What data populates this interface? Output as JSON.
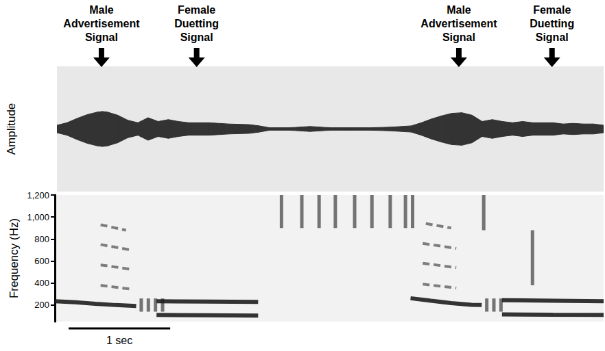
{
  "chart_data": [
    {
      "type": "waveform",
      "y_label": "Amplitude",
      "xlim": [
        0,
        5.4
      ],
      "ylim": [
        -1,
        1
      ],
      "tick_labels": false,
      "color": "#333333",
      "x": [
        0,
        0.1,
        0.2,
        0.3,
        0.4,
        0.45,
        0.5,
        0.6,
        0.7,
        0.8,
        0.9,
        1.0,
        1.1,
        1.2,
        1.3,
        1.5,
        1.7,
        1.9,
        2.0,
        2.1,
        2.3,
        2.5,
        2.7,
        2.9,
        3.1,
        3.3,
        3.5,
        3.6,
        3.7,
        3.8,
        3.9,
        4.0,
        4.1,
        4.2,
        4.3,
        4.4,
        4.5,
        4.6,
        4.7,
        4.8,
        4.9,
        5.0,
        5.1,
        5.2,
        5.3,
        5.4
      ],
      "values": [
        0.06,
        0.1,
        0.17,
        0.23,
        0.27,
        0.28,
        0.27,
        0.22,
        0.14,
        0.1,
        0.18,
        0.12,
        0.15,
        0.12,
        0.1,
        0.1,
        0.08,
        0.07,
        0.05,
        0.02,
        0.02,
        0.04,
        0.02,
        0.02,
        0.02,
        0.03,
        0.05,
        0.1,
        0.16,
        0.21,
        0.25,
        0.26,
        0.22,
        0.12,
        0.15,
        0.12,
        0.1,
        0.12,
        0.1,
        0.1,
        0.1,
        0.08,
        0.09,
        0.08,
        0.08,
        0.06
      ],
      "annotations": [
        {
          "text": "Male Advertisement Signal",
          "x": 0.44
        },
        {
          "text": "Female Duetting Signal",
          "x": 1.38
        },
        {
          "text": "Male Advertisement Signal",
          "x": 3.97
        },
        {
          "text": "Female Duetting Signal",
          "x": 4.89
        }
      ]
    },
    {
      "type": "spectrogram",
      "y_label": "Frequency (Hz)",
      "xlim": [
        0,
        5.4
      ],
      "ylim": [
        50,
        1200
      ],
      "yticks": [
        200,
        400,
        600,
        800,
        1000,
        1200
      ],
      "tick_labels": "y",
      "color": "#1e1e1e",
      "traces": [
        {
          "x": [
            0,
            0.2,
            0.4,
            0.6,
            0.8
          ],
          "values": [
            235,
            225,
            212,
            200,
            192
          ],
          "line_style": "solid"
        },
        {
          "x": [
            0.45,
            0.75
          ],
          "values": [
            380,
            345
          ],
          "line_style": "dashed"
        },
        {
          "x": [
            0.45,
            0.75
          ],
          "values": [
            565,
            525
          ],
          "line_style": "dashed"
        },
        {
          "x": [
            0.45,
            0.75
          ],
          "values": [
            750,
            700
          ],
          "line_style": "dashed"
        },
        {
          "x": [
            0.45,
            0.7
          ],
          "values": [
            930,
            880
          ],
          "line_style": "dashed"
        },
        {
          "x": [
            1.0,
            1.5,
            2.0
          ],
          "values": [
            235,
            232,
            228
          ],
          "line_style": "solid"
        },
        {
          "x": [
            1.0,
            1.5,
            2.0
          ],
          "values": [
            110,
            108,
            105
          ],
          "line_style": "solid"
        },
        {
          "x": [
            3.5,
            3.7,
            3.9,
            4.1,
            4.2
          ],
          "values": [
            262,
            240,
            218,
            203,
            200
          ],
          "line_style": "solid"
        },
        {
          "x": [
            3.62,
            3.95
          ],
          "values": [
            390,
            355
          ],
          "line_style": "dashed"
        },
        {
          "x": [
            3.62,
            3.95
          ],
          "values": [
            580,
            540
          ],
          "line_style": "dashed"
        },
        {
          "x": [
            3.62,
            3.95
          ],
          "values": [
            760,
            715
          ],
          "line_style": "dashed"
        },
        {
          "x": [
            3.65,
            3.9
          ],
          "values": [
            940,
            900
          ],
          "line_style": "dashed"
        },
        {
          "x": [
            4.4,
            4.9,
            5.4
          ],
          "values": [
            245,
            240,
            235
          ],
          "line_style": "solid"
        },
        {
          "x": [
            4.4,
            4.9,
            5.4
          ],
          "values": [
            115,
            112,
            110
          ],
          "line_style": "solid"
        }
      ],
      "pulses": [
        {
          "x": 0.85,
          "values": [
            140,
            260
          ]
        },
        {
          "x": 0.92,
          "values": [
            140,
            260
          ]
        },
        {
          "x": 0.99,
          "values": [
            140,
            260
          ]
        },
        {
          "x": 1.06,
          "values": [
            140,
            260
          ]
        },
        {
          "x": 2.23,
          "values": [
            900,
            1200
          ]
        },
        {
          "x": 2.43,
          "values": [
            900,
            1200
          ]
        },
        {
          "x": 2.6,
          "values": [
            900,
            1200
          ]
        },
        {
          "x": 2.76,
          "values": [
            900,
            1200
          ]
        },
        {
          "x": 2.95,
          "values": [
            900,
            1200
          ]
        },
        {
          "x": 3.12,
          "values": [
            900,
            1200
          ]
        },
        {
          "x": 3.3,
          "values": [
            900,
            1200
          ]
        },
        {
          "x": 3.45,
          "values": [
            900,
            1200
          ]
        },
        {
          "x": 3.52,
          "values": [
            900,
            1200
          ]
        },
        {
          "x": 4.22,
          "values": [
            880,
            1200
          ]
        },
        {
          "x": 4.25,
          "values": [
            140,
            260
          ]
        },
        {
          "x": 4.32,
          "values": [
            140,
            260
          ]
        },
        {
          "x": 4.39,
          "values": [
            140,
            260
          ]
        },
        {
          "x": 4.7,
          "values": [
            380,
            880
          ]
        }
      ],
      "scale_bar": {
        "length": 1,
        "label": "1 sec"
      }
    }
  ]
}
